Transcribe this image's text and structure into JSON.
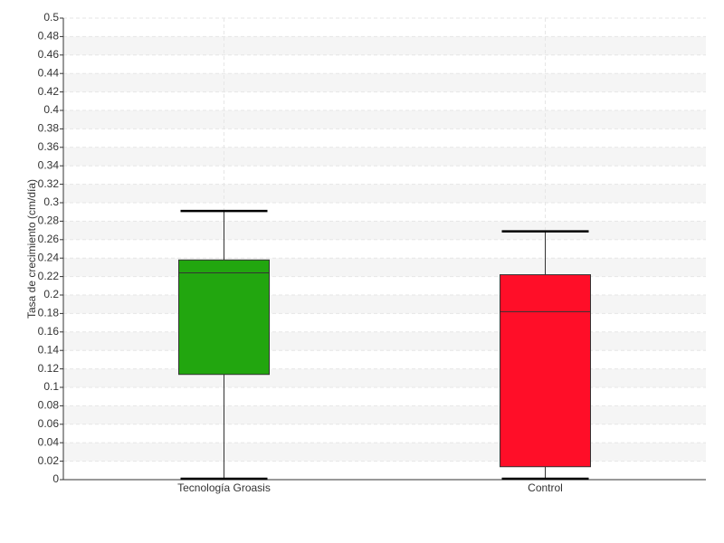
{
  "chart_data": {
    "type": "box",
    "y_label": "Tasa de crecimiento (cm/día)",
    "categories": [
      "Tecnología Groasis",
      "Control"
    ],
    "boxes": [
      {
        "whisker_low": 0.001,
        "q1": 0.114,
        "median": 0.224,
        "q3": 0.238,
        "whisker_high": 0.291,
        "color": "#22a60f"
      },
      {
        "whisker_low": 0.001,
        "q1": 0.014,
        "median": 0.182,
        "q3": 0.222,
        "whisker_high": 0.269,
        "color": "#ff0e28"
      }
    ],
    "ylim": [
      0,
      0.5
    ],
    "yticks": [
      0,
      0.02,
      0.04,
      0.06,
      0.08,
      0.1,
      0.12,
      0.14,
      0.16,
      0.18,
      0.2,
      0.22,
      0.24,
      0.26,
      0.28,
      0.3,
      0.32,
      0.34,
      0.36,
      0.38,
      0.4,
      0.42,
      0.44,
      0.46,
      0.48,
      0.5
    ],
    "grid": true
  }
}
